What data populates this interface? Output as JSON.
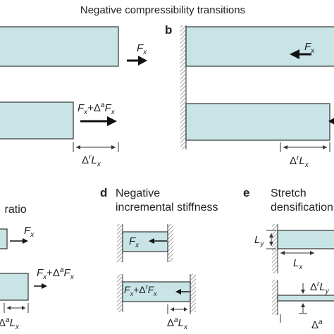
{
  "figure": {
    "title": "Negative compressibility transitions",
    "colors": {
      "bar_fill": "#c9e4e6",
      "bar_stroke": "#333333",
      "wall": "#888888",
      "arrow": "#111111",
      "text": "#222222"
    }
  },
  "panels": {
    "a": {
      "force": "F",
      "force_sub": "x",
      "force2_main": "F",
      "force2_sub": "x",
      "force2_mid": "+Δ",
      "force2_sup": "a",
      "force2_end": "F",
      "force2_end_sub": "x",
      "delta_pre": "Δ",
      "delta_sup": "r",
      "delta_L": "L",
      "delta_sub": "x"
    },
    "b": {
      "letter": "b",
      "force": "F",
      "force_sub": "x",
      "delta_pre": "Δ",
      "delta_sup": "r",
      "delta_L": "L",
      "delta_sub": "x"
    },
    "c": {
      "title_fragment": "ratio",
      "force": "F",
      "force_sub": "x",
      "force2_main": "F",
      "force2_sub": "x",
      "force2_mid": "+Δ",
      "force2_sup": "a",
      "force2_end": "F",
      "force2_end_sub": "x",
      "delta_pre": "Δ",
      "delta_sup": "a",
      "delta_L": "L",
      "delta_sub": "x"
    },
    "d": {
      "letter": "d",
      "title_line1": "Negative",
      "title_line2": "incremental stiffness",
      "force": "F",
      "force_sub": "x",
      "force2_main": "F",
      "force2_sub": "x",
      "force2_mid": "+Δ",
      "force2_sup": "r",
      "force2_end": "F",
      "force2_end_sub": "x",
      "delta_pre": "Δ",
      "delta_sup": "a",
      "delta_L": "L",
      "delta_sub": "x"
    },
    "e": {
      "letter": "e",
      "title_line1": "Stretch",
      "title_line2": "densification",
      "Ly_L": "L",
      "Ly_sub": "y",
      "Lx_L": "L",
      "Lx_sub": "x",
      "dLy_pre": "Δ",
      "dLy_sup": "r",
      "dLy_L": "L",
      "dLy_sub": "y",
      "dLx_pre": "Δ",
      "dLx_sup": "a"
    }
  }
}
